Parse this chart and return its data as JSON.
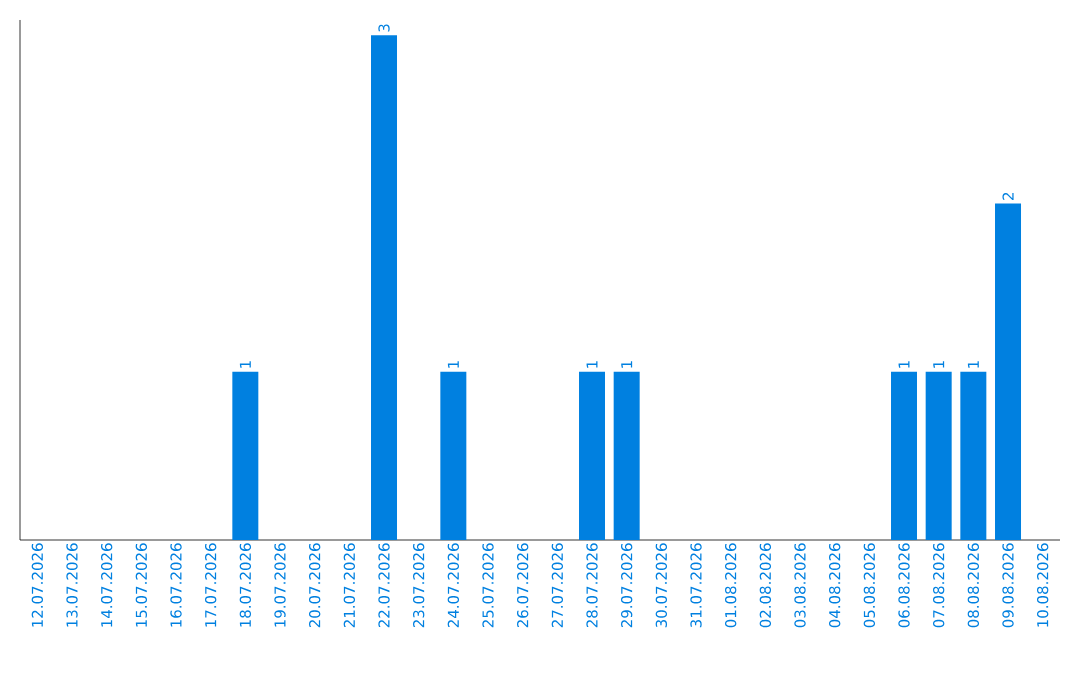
{
  "chart_data": {
    "type": "bar",
    "categories": [
      "12.07.2026",
      "13.07.2026",
      "14.07.2026",
      "15.07.2026",
      "16.07.2026",
      "17.07.2026",
      "18.07.2026",
      "19.07.2026",
      "20.07.2026",
      "21.07.2026",
      "22.07.2026",
      "23.07.2026",
      "24.07.2026",
      "25.07.2026",
      "26.07.2026",
      "27.07.2026",
      "28.07.2026",
      "29.07.2026",
      "30.07.2026",
      "31.07.2026",
      "01.08.2026",
      "02.08.2026",
      "03.08.2026",
      "04.08.2026",
      "05.08.2026",
      "06.08.2026",
      "07.08.2026",
      "08.08.2026",
      "09.08.2026",
      "10.08.2026"
    ],
    "values": [
      0,
      0,
      0,
      0,
      0,
      0,
      1,
      0,
      0,
      0,
      3,
      0,
      1,
      0,
      0,
      0,
      1,
      1,
      0,
      0,
      0,
      0,
      0,
      0,
      0,
      1,
      1,
      1,
      2,
      0
    ],
    "value_labels": [
      null,
      null,
      null,
      null,
      null,
      null,
      "1",
      null,
      null,
      null,
      "3",
      null,
      "1",
      null,
      null,
      null,
      "1",
      "1",
      null,
      null,
      null,
      null,
      null,
      null,
      null,
      "1",
      "1",
      "1",
      "2",
      null
    ],
    "color": "#0080e0",
    "tick_labels": "x"
  }
}
